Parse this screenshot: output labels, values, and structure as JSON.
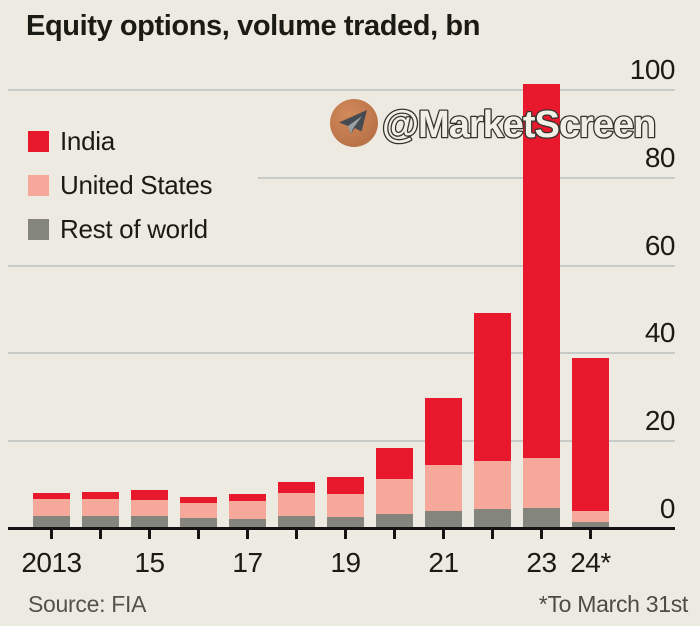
{
  "title": "Equity options, volume traded, bn",
  "watermark": {
    "text": "@MarketScreen",
    "icon": "telegram-paper-plane",
    "circle_color": "#c1764b",
    "text_fill": "#f2efe6",
    "text_outline": "#34342f"
  },
  "footer": {
    "source": "Source: FIA",
    "note": "*To March 31st"
  },
  "colors": {
    "background": "#edeae1",
    "gridline": "#c7cbc8",
    "axis": "#141414",
    "india_red": "#e8192d",
    "us_pink": "#f6a89a",
    "row_gray": "#84867d"
  },
  "chart_data": {
    "type": "bar",
    "stacked": true,
    "title": "Equity options, volume traded, bn",
    "categories": [
      "2013",
      "2014",
      "2015",
      "2016",
      "2017",
      "2018",
      "2019",
      "2020",
      "2021",
      "2022",
      "2023",
      "2024"
    ],
    "x_tick_labels": [
      "2013",
      "",
      "15",
      "",
      "17",
      "",
      "19",
      "",
      "21",
      "",
      "23",
      "24*"
    ],
    "series": [
      {
        "name": "India",
        "color": "#e8192d",
        "values": [
          1.3,
          1.7,
          2.2,
          1.3,
          1.7,
          2.4,
          3.9,
          7.0,
          15.2,
          33.7,
          85.2,
          34.9
        ]
      },
      {
        "name": "United States",
        "color": "#f6a89a",
        "values": [
          3.8,
          3.8,
          3.6,
          3.4,
          4.2,
          5.3,
          5.3,
          8.0,
          10.4,
          10.9,
          11.4,
          2.6
        ]
      },
      {
        "name": "Rest of world",
        "color": "#84867d",
        "values": [
          2.9,
          3.0,
          3.0,
          2.5,
          2.3,
          3.0,
          2.7,
          3.4,
          4.2,
          4.6,
          4.8,
          1.5
        ]
      }
    ],
    "totals": [
      8.0,
      8.5,
      8.8,
      7.2,
      8.2,
      10.7,
      11.9,
      18.4,
      29.8,
      49.2,
      101.4,
      39.0
    ],
    "ylim": [
      0,
      100
    ],
    "yticks": [
      0,
      20,
      40,
      60,
      80,
      100
    ],
    "grid": "horizontal",
    "legend_position": "upper-left"
  }
}
